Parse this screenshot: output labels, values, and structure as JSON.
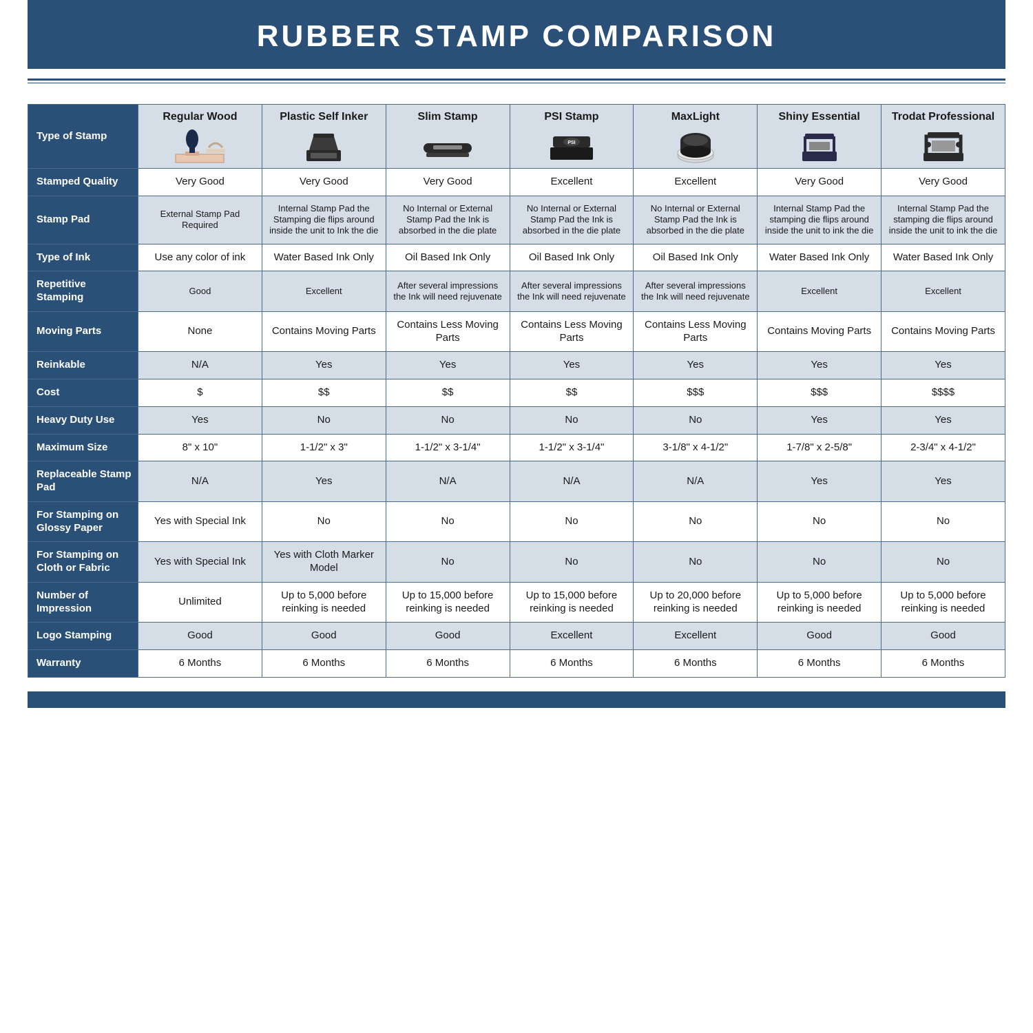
{
  "title": "RUBBER STAMP COMPARISON",
  "colors": {
    "brand": "#2a5078",
    "header_bg": "#d5dde6",
    "border": "#4a6a8a",
    "text": "#1a1a1a",
    "white": "#ffffff"
  },
  "columns": [
    "Regular Wood",
    "Plastic Self Inker",
    "Slim Stamp",
    "PSI Stamp",
    "MaxLight",
    "Shiny Essential",
    "Trodat Professional"
  ],
  "row_header_label": "Type of Stamp",
  "rows": [
    {
      "label": "Stamped Quality",
      "alt": false,
      "cells": [
        "Very Good",
        "Very Good",
        "Very Good",
        "Excellent",
        "Excellent",
        "Very Good",
        "Very Good"
      ]
    },
    {
      "label": "Stamp Pad",
      "alt": true,
      "small": true,
      "cells": [
        "External Stamp Pad Required",
        "Internal Stamp Pad the Stamping die flips around inside the unit to Ink the die",
        "No Internal or External Stamp Pad the Ink is absorbed in the die plate",
        "No Internal or External Stamp Pad the Ink is absorbed in the die plate",
        "No Internal or External Stamp Pad the Ink is absorbed in the die plate",
        "Internal Stamp Pad the stamping die flips around inside the unit to ink the die",
        "Internal Stamp Pad the stamping die flips around inside the unit to ink the die"
      ]
    },
    {
      "label": "Type of Ink",
      "alt": false,
      "cells": [
        "Use any color of ink",
        "Water Based Ink Only",
        "Oil Based Ink Only",
        "Oil Based Ink Only",
        "Oil Based Ink Only",
        "Water Based Ink Only",
        "Water Based Ink Only"
      ]
    },
    {
      "label": "Repetitive Stamping",
      "alt": true,
      "small": true,
      "cells": [
        "Good",
        "Excellent",
        "After several impressions the Ink will need rejuvenate",
        "After several impressions the Ink will need rejuvenate",
        "After several impressions the Ink will need rejuvenate",
        "Excellent",
        "Excellent"
      ]
    },
    {
      "label": "Moving Parts",
      "alt": false,
      "cells": [
        "None",
        "Contains Moving Parts",
        "Contains Less Moving Parts",
        "Contains Less Moving Parts",
        "Contains Less Moving Parts",
        "Contains Moving Parts",
        "Contains Moving Parts"
      ]
    },
    {
      "label": "Reinkable",
      "alt": true,
      "cells": [
        "N/A",
        "Yes",
        "Yes",
        "Yes",
        "Yes",
        "Yes",
        "Yes"
      ]
    },
    {
      "label": "Cost",
      "alt": false,
      "cells": [
        "$",
        "$$",
        "$$",
        "$$",
        "$$$",
        "$$$",
        "$$$$"
      ]
    },
    {
      "label": "Heavy Duty Use",
      "alt": true,
      "cells": [
        "Yes",
        "No",
        "No",
        "No",
        "No",
        "Yes",
        "Yes"
      ]
    },
    {
      "label": "Maximum Size",
      "alt": false,
      "cells": [
        "8\" x 10\"",
        "1-1/2\" x 3\"",
        "1-1/2\" x 3-1/4\"",
        "1-1/2\" x 3-1/4\"",
        "3-1/8\" x 4-1/2\"",
        "1-7/8\" x 2-5/8\"",
        "2-3/4\" x 4-1/2\""
      ]
    },
    {
      "label": "Replaceable Stamp Pad",
      "alt": true,
      "cells": [
        "N/A",
        "Yes",
        "N/A",
        "N/A",
        "N/A",
        "Yes",
        "Yes"
      ]
    },
    {
      "label": "For Stamping on Glossy Paper",
      "alt": false,
      "cells": [
        "Yes with Special Ink",
        "No",
        "No",
        "No",
        "No",
        "No",
        "No"
      ]
    },
    {
      "label": "For Stamping on Cloth or Fabric",
      "alt": true,
      "cells": [
        "Yes with Special Ink",
        "Yes with Cloth Marker Model",
        "No",
        "No",
        "No",
        "No",
        "No"
      ]
    },
    {
      "label": "Number of Impression",
      "alt": false,
      "cells": [
        "Unlimited",
        "Up to 5,000 before reinking is needed",
        "Up to 15,000 before reinking is needed",
        "Up to 15,000 before reinking is needed",
        "Up to 20,000 before reinking is needed",
        "Up to 5,000 before reinking is needed",
        "Up to 5,000 before reinking is needed"
      ]
    },
    {
      "label": "Logo Stamping",
      "alt": true,
      "cells": [
        "Good",
        "Good",
        "Good",
        "Excellent",
        "Excellent",
        "Good",
        "Good"
      ]
    },
    {
      "label": "Warranty",
      "alt": false,
      "cells": [
        "6 Months",
        "6 Months",
        "6 Months",
        "6 Months",
        "6 Months",
        "6 Months",
        "6 Months"
      ]
    }
  ],
  "stamp_icons": [
    {
      "type": "wood",
      "fill": "#1a2a4a",
      "base": "#e8c8b0"
    },
    {
      "type": "selfinker",
      "fill": "#2a2a2a"
    },
    {
      "type": "slim",
      "fill": "#2a2a2a"
    },
    {
      "type": "psi",
      "fill": "#2a2a2a"
    },
    {
      "type": "maxlight",
      "fill": "#2a2a2a",
      "ring": "#cccccc"
    },
    {
      "type": "shiny",
      "fill": "#2a2a4a"
    },
    {
      "type": "trodat",
      "fill": "#2a2a2a"
    }
  ]
}
